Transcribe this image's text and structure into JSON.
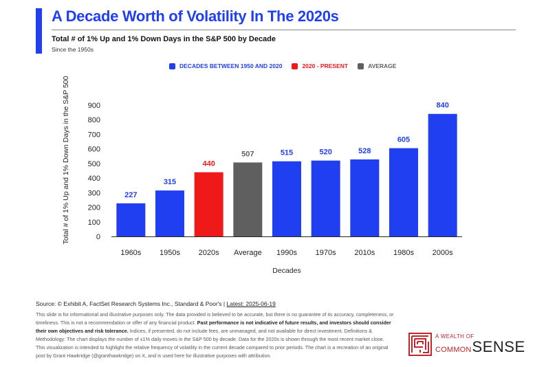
{
  "header": {
    "title": "A Decade Worth of Volatility In The 2020s",
    "subtitle": "Total # of 1% Up and 1% Down Days in the S&P 500 by Decade",
    "since": "Since the 1950s"
  },
  "colors": {
    "accent": "#1f3ff0",
    "historical": "#1f3ff0",
    "current": "#f01919",
    "average": "#5f5f5f"
  },
  "legend": [
    {
      "label": "DECADES BETWEEN 1950 AND 2020",
      "color": "#1f3ff0"
    },
    {
      "label": "2020 - PRESENT",
      "color": "#f01919"
    },
    {
      "label": "AVERAGE",
      "color": "#5f5f5f"
    }
  ],
  "chart_data": {
    "type": "bar",
    "categories": [
      "1960s",
      "1950s",
      "2020s",
      "Average",
      "1990s",
      "1970s",
      "2010s",
      "1980s",
      "2000s"
    ],
    "values": [
      227,
      315,
      440,
      507,
      515,
      520,
      528,
      605,
      840
    ],
    "bar_colors": [
      "#1f3ff0",
      "#1f3ff0",
      "#f01919",
      "#5f5f5f",
      "#1f3ff0",
      "#1f3ff0",
      "#1f3ff0",
      "#1f3ff0",
      "#1f3ff0"
    ],
    "label_colors": [
      "#1f3ff0",
      "#1f3ff0",
      "#f01919",
      "#5f5f5f",
      "#1f3ff0",
      "#1f3ff0",
      "#1f3ff0",
      "#1f3ff0",
      "#1f3ff0"
    ],
    "xlabel": "Decades",
    "ylabel": "Total # of 1% Up and 1% Down Days in the S&P 500",
    "ylim": [
      0,
      900
    ],
    "yticks": [
      0,
      100,
      200,
      300,
      400,
      500,
      600,
      700,
      800,
      900
    ],
    "grid": false,
    "legend_position": "top-center"
  },
  "footer": {
    "source": "Source: © Exhibit A, FactSet Research Systems Inc., Standard & Poor's |",
    "latest": "Latest: 2025-06-19",
    "disclaimer_1": "This slide is for informational and illustrative purposes only. The data provided is believed to be accurate, but there is no guarantee of its accuracy, completeness, or timeliness. This is not a recommendation or offer of any financial product.",
    "disclaimer_bold": "Past performance is not indicative of future results, and investors should consider their own objectives and risk tolerance.",
    "disclaimer_2": "Indices, if presented, do not include fees, are unmanaged, and not available for direct investment. Definitions & Methodology: The chart displays the number of ±1% daily moves in the S&P 500 by decade. Data for the 2020s is shown through the most recent market close. This visualization is intended to highlight the relative frequency of volatility in the current decade compared to prior periods. The chart is a recreation of an original post by Grant Hawkridge (@granthawkridge) on X, and is used here for illustrative purposes with attribution."
  },
  "logo": {
    "small": "A WEALTH OF",
    "common": "COMMON",
    "sense": "SENSE",
    "icon": "maze-logo-icon"
  }
}
